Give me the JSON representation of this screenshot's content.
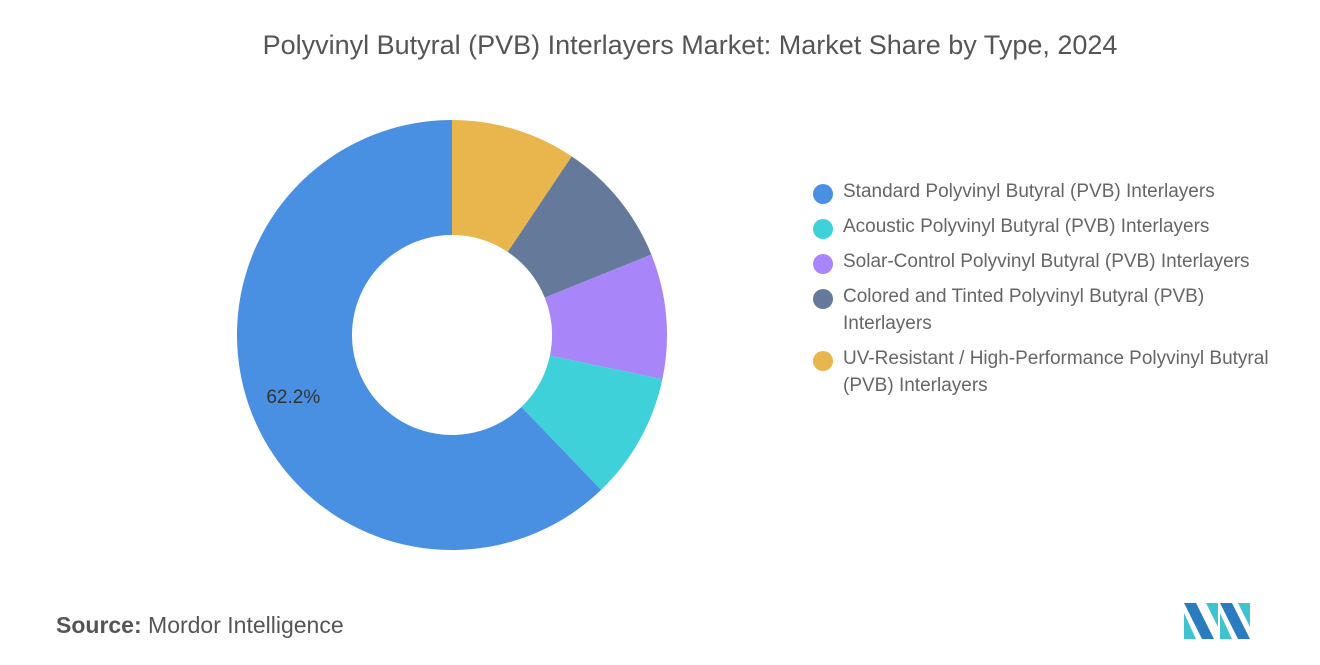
{
  "chart_data": {
    "type": "pie",
    "title": "Polyvinyl Butyral (PVB) Interlayers Market: Market Share by Type, 2024",
    "categories": [
      "Standard Polyvinyl Butyral (PVB) Interlayers",
      "Acoustic Polyvinyl Butyral (PVB) Interlayers",
      "Solar-Control Polyvinyl Butyral (PVB) Interlayers",
      "Colored and Tinted Polyvinyl Butyral (PVB) Interlayers",
      "UV-Resistant / High-Performance Polyvinyl Butyral (PVB) Interlayers"
    ],
    "values": [
      62.2,
      9.5,
      9.4,
      9.5,
      9.4
    ],
    "colors": [
      "#4A90E2",
      "#3FD1DA",
      "#A886FA",
      "#65799A",
      "#E8B64C"
    ],
    "data_labels": [
      "62.2%",
      "",
      "",
      "",
      ""
    ],
    "donut": true,
    "legend_position": "right"
  },
  "source": {
    "label": "Source:",
    "value": "Mordor Intelligence"
  }
}
